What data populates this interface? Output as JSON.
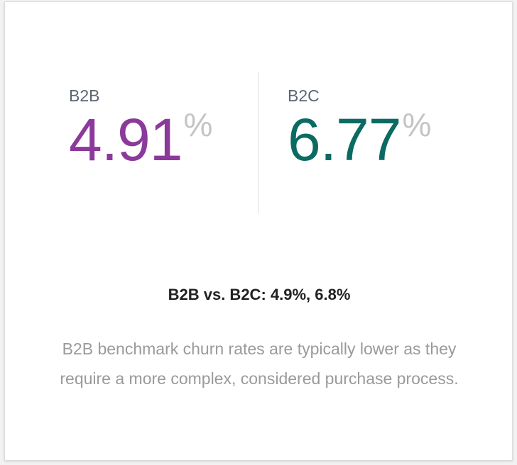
{
  "stats": [
    {
      "label": "B2B",
      "value": "4.91",
      "unit": "%",
      "color": "#8b3a9c"
    },
    {
      "label": "B2C",
      "value": "6.77",
      "unit": "%",
      "color": "#0b6a62"
    }
  ],
  "headline": "B2B vs. B2C: 4.9%, 6.8%",
  "description": "B2B benchmark churn rates are typically lower as they require a more complex, considered purchase process."
}
